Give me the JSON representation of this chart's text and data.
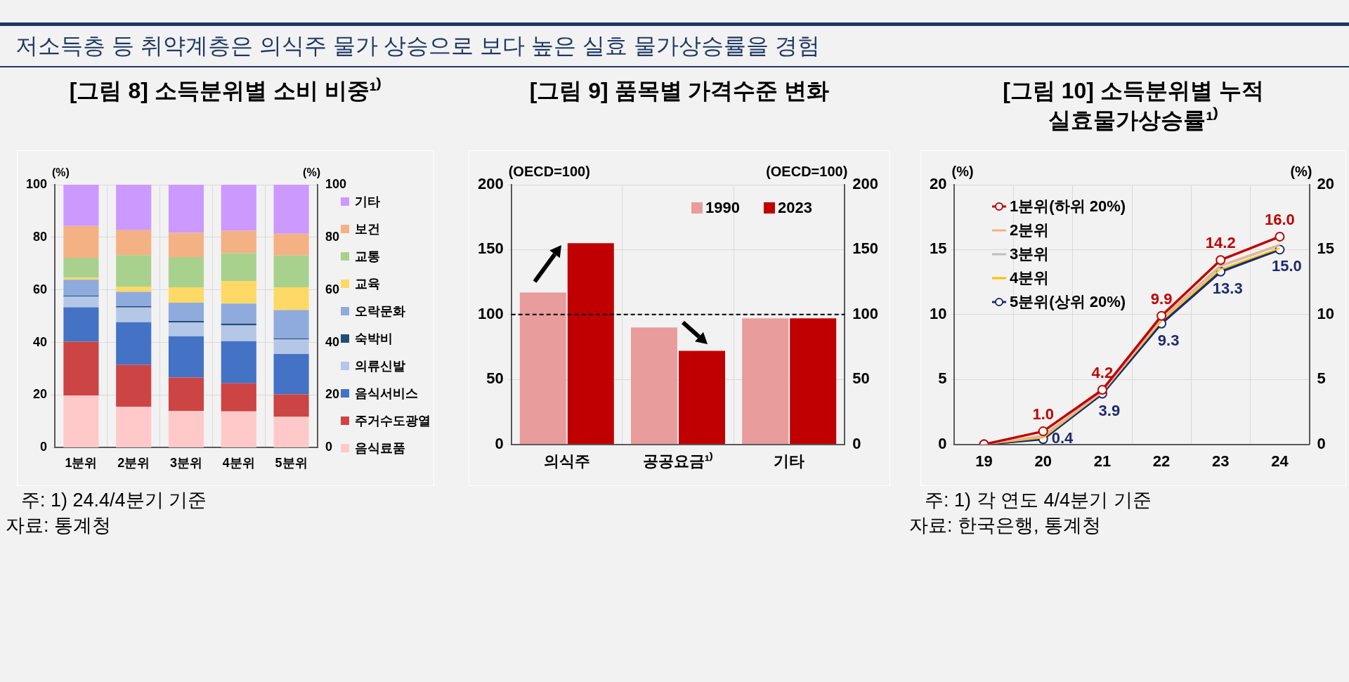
{
  "chart_data": [
    {
      "type": "bar",
      "stacked": true,
      "title": "[그림 8] 소득분위별 소비 비중¹⁾",
      "ylabel": "(%)",
      "y2label": "(%)",
      "categories": [
        "1분위",
        "2분위",
        "3분위",
        "4분위",
        "5분위"
      ],
      "series": [
        {
          "name": "음식료품",
          "color": "#ffc9c9",
          "values": [
            19.8,
            15.5,
            14.0,
            13.8,
            11.7
          ]
        },
        {
          "name": "주거수도광열",
          "color": "#cc4444",
          "values": [
            20.5,
            16.0,
            12.7,
            10.7,
            8.6
          ]
        },
        {
          "name": "음식서비스",
          "color": "#4472c4",
          "values": [
            13.1,
            16.2,
            15.7,
            16.0,
            15.3
          ]
        },
        {
          "name": "의류신발",
          "color": "#b4c7e7",
          "values": [
            4.1,
            5.6,
            5.2,
            6.1,
            5.6
          ]
        },
        {
          "name": "숙박비",
          "color": "#1f4e79",
          "values": [
            0.3,
            0.5,
            0.6,
            0.6,
            0.3
          ]
        },
        {
          "name": "오락문화",
          "color": "#8faadc",
          "values": [
            6.1,
            5.5,
            6.9,
            7.6,
            10.8
          ]
        },
        {
          "name": "교육",
          "color": "#ffd966",
          "values": [
            0.8,
            2.0,
            5.9,
            8.6,
            8.7
          ]
        },
        {
          "name": "교통",
          "color": "#a9d18e",
          "values": [
            7.5,
            11.9,
            11.5,
            10.6,
            12.1
          ]
        },
        {
          "name": "보건",
          "color": "#f4b183",
          "values": [
            12.1,
            9.5,
            9.2,
            8.5,
            8.3
          ]
        },
        {
          "name": "기타",
          "color": "#cc99ff",
          "values": [
            15.7,
            17.3,
            18.3,
            17.5,
            18.6
          ]
        }
      ],
      "ylim": [
        0,
        100
      ],
      "yticks": [
        0,
        20,
        40,
        60,
        80,
        100
      ],
      "y2lim": [
        0,
        100
      ],
      "y2ticks": [
        0,
        20,
        40,
        60,
        80,
        100
      ],
      "grid": true,
      "legend": "right",
      "annotations": [
        "저소득층 등 취약계층은 의식주 물가 상승으로 보다 높은 실효 물가상승률을 경험",
        "주: 1) 24.4/4분기 기준",
        "자료: 통계청"
      ]
    },
    {
      "type": "bar",
      "title": "[그림 9] 품목별 가격수준 변화",
      "ylabel": "(OECD=100)",
      "y2label": "(OECD=100)",
      "categories": [
        "의식주",
        "공공요금¹⁾",
        "기타"
      ],
      "series": [
        {
          "name": "1990",
          "color": "#e89c9c",
          "values": [
            117,
            90,
            97
          ]
        },
        {
          "name": "2023",
          "color": "#c00000",
          "values": [
            155,
            72,
            97
          ]
        }
      ],
      "ylim": [
        0,
        200
      ],
      "yticks": [
        0,
        50,
        100,
        150,
        200
      ],
      "y2lim": [
        0,
        200
      ],
      "y2ticks": [
        0,
        50,
        100,
        150,
        200
      ],
      "grid": true,
      "legend": "top right",
      "ref_lines": [
        {
          "axis": "y",
          "value": 100,
          "color": "#000000",
          "line_style": "dashed"
        }
      ]
    },
    {
      "type": "line",
      "title": "[그림 10] 소득분위별 누적\n실효물가상승률¹⁾",
      "ylabel": "(%)",
      "y2label": "(%)",
      "categories": [
        "19",
        "20",
        "21",
        "22",
        "23",
        "24"
      ],
      "series": [
        {
          "name": "1분위(하위 20%)",
          "color": "#c00000",
          "marker": "circle",
          "values": [
            0,
            1.0,
            4.2,
            9.9,
            14.2,
            16.0
          ],
          "value_labels": [
            null,
            "1.0",
            "4.2",
            "9.9",
            "14.2",
            "16.0"
          ]
        },
        {
          "name": "2분위",
          "color": "#f4b183",
          "marker": "none",
          "values": [
            0,
            0.7,
            4.1,
            9.7,
            13.8,
            15.4
          ]
        },
        {
          "name": "3분위",
          "color": "#bfbfbf",
          "marker": "none",
          "values": [
            0,
            0.6,
            4.0,
            9.6,
            13.7,
            15.3
          ]
        },
        {
          "name": "4분위",
          "color": "#ffc000",
          "marker": "none",
          "values": [
            0,
            0.5,
            4.0,
            9.5,
            13.5,
            15.1
          ]
        },
        {
          "name": "5분위(상위 20%)",
          "color": "#1f2a6e",
          "marker": "circle",
          "values": [
            0,
            0.4,
            3.9,
            9.3,
            13.3,
            15.0
          ],
          "value_labels": [
            null,
            "0.4",
            "3.9",
            "9.3",
            "13.3",
            "15.0"
          ]
        }
      ],
      "ylim": [
        0,
        20
      ],
      "yticks": [
        0,
        5,
        10,
        15,
        20
      ],
      "y2lim": [
        0,
        20
      ],
      "y2ticks": [
        0,
        5,
        10,
        15,
        20
      ],
      "grid": true,
      "legend": "top left",
      "annotations": [
        "주: 1) 각 연도 4/4분기 기준",
        "자료: 한국은행, 통계청"
      ]
    }
  ]
}
